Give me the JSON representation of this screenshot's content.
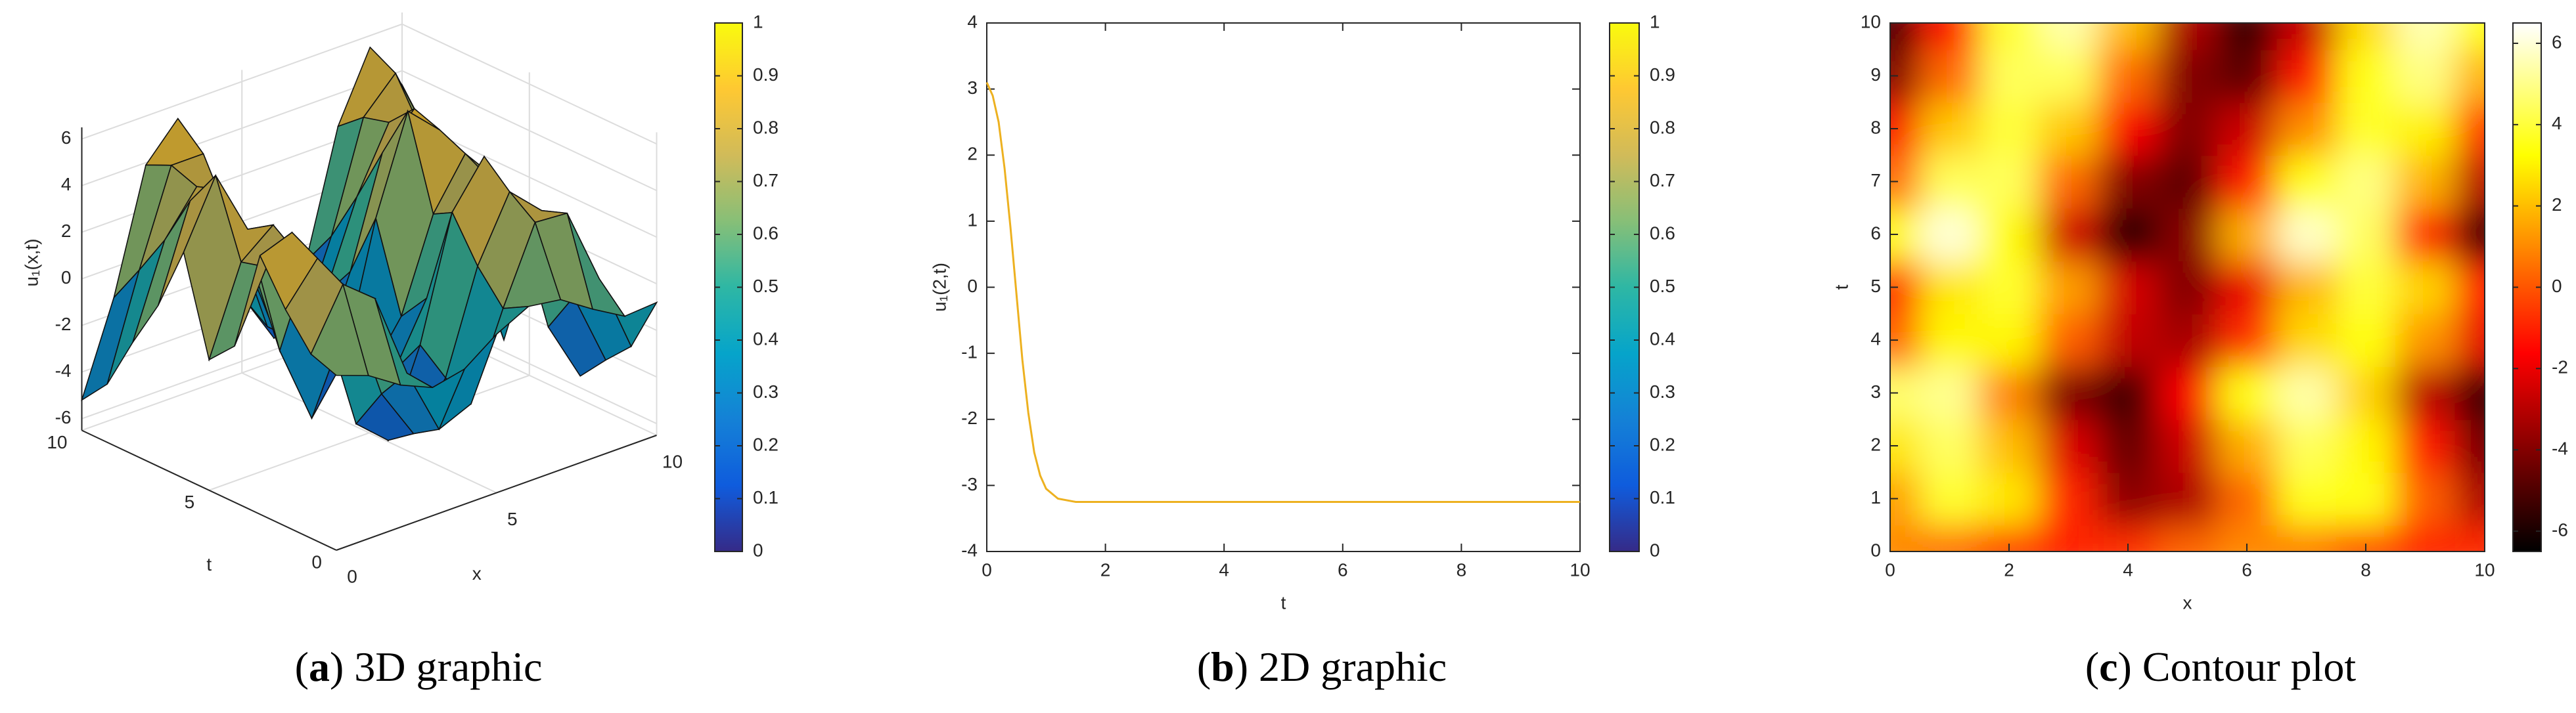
{
  "chart_data": [
    {
      "type": "surface",
      "xlabel": "x",
      "ylabel": "t",
      "zlabel": "u₁(x,t)",
      "x": [
        0,
        1,
        2,
        3,
        4,
        5,
        6,
        7,
        8,
        9,
        10
      ],
      "y": [
        0,
        1,
        2,
        3,
        4,
        5,
        6,
        7,
        8,
        9,
        10
      ],
      "z": [
        [
          1,
          0.5,
          -0.4,
          -1,
          -0.7,
          0.3,
          1,
          0.8,
          -0.1,
          -0.9,
          -0.8
        ],
        [
          1.4,
          3.9,
          2.8,
          -0.9,
          -3.8,
          -3.2,
          0.4,
          3.6,
          3.5,
          0.2,
          -3.2
        ],
        [
          2.8,
          4.5,
          2.0,
          -2.3,
          -4.5,
          -2.6,
          1.7,
          4.4,
          3.1,
          -1.1,
          -4.3
        ],
        [
          4.6,
          5.1,
          0.9,
          -4.1,
          -5.3,
          -1.7,
          3.5,
          5.4,
          2.4,
          -2.9,
          -5.5
        ],
        [
          0.2,
          3.1,
          3.1,
          0.2,
          -2.8,
          -3.3,
          -0.7,
          2.5,
          3.4,
          1.2,
          -2.1
        ],
        [
          -0.9,
          2.8,
          3.9,
          1.4,
          -2.4,
          -4.0,
          -2.0,
          1.9,
          4.0,
          2.4,
          -1.4
        ],
        [
          3.2,
          6.0,
          3.2,
          -2.5,
          -5.9,
          -3.9,
          1.7,
          5.8,
          4.5,
          -0.9,
          -5.5
        ],
        [
          0.4,
          4.4,
          4.4,
          0.4,
          -4.0,
          -4.7,
          -1.1,
          3.5,
          4.9,
          1.8,
          -3.0
        ],
        [
          -1.7,
          2.2,
          4.0,
          2.2,
          -1.7,
          -4.0,
          -2.6,
          1.1,
          3.8,
          3.0,
          -0.6
        ],
        [
          -4.0,
          0.4,
          4.4,
          4.4,
          0.4,
          -4.0,
          -4.7,
          -1.1,
          3.5,
          4.9,
          1.8
        ],
        [
          -5.2,
          -1.3,
          3.9,
          5.4,
          2.0,
          -3.2,
          -5.5,
          -2.7,
          2.6,
          5.5,
          3.4
        ]
      ],
      "xlim": [
        0,
        10
      ],
      "ylim": [
        0,
        10
      ],
      "zlim": [
        -6.5,
        6.5
      ],
      "xticks": [
        0,
        5,
        10
      ],
      "yticks": [
        0,
        5,
        10
      ],
      "zticks": [
        -6,
        -4,
        -2,
        0,
        2,
        4,
        6
      ],
      "colorbar": {
        "colormap": "parula",
        "lim": [
          0,
          1
        ],
        "ticks": [
          0,
          0.1,
          0.2,
          0.3,
          0.4,
          0.5,
          0.6,
          0.7,
          0.8,
          0.9,
          1
        ]
      },
      "caption": [
        "(",
        "a",
        ") 3D graphic"
      ]
    },
    {
      "type": "line",
      "xlabel": "t",
      "ylabel": "u₁(2,t)",
      "x": [
        0,
        0.1,
        0.2,
        0.3,
        0.4,
        0.5,
        0.6,
        0.7,
        0.8,
        0.9,
        1.0,
        1.2,
        1.5,
        2,
        4,
        6,
        8,
        10
      ],
      "series": [
        {
          "color": "#edb120",
          "values": [
            3.1,
            2.9,
            2.5,
            1.8,
            0.9,
            -0.1,
            -1.1,
            -1.9,
            -2.5,
            -2.85,
            -3.05,
            -3.2,
            -3.25,
            -3.25,
            -3.25,
            -3.25,
            -3.25,
            -3.25
          ]
        }
      ],
      "xlim": [
        0,
        10
      ],
      "ylim": [
        -4,
        4
      ],
      "xticks": [
        0,
        2,
        4,
        6,
        8,
        10
      ],
      "yticks": [
        -4,
        -3,
        -2,
        -1,
        0,
        1,
        2,
        3,
        4
      ],
      "colorbar": {
        "colormap": "parula",
        "lim": [
          0,
          1
        ],
        "ticks": [
          0,
          0.1,
          0.2,
          0.3,
          0.4,
          0.5,
          0.6,
          0.7,
          0.8,
          0.9,
          1
        ]
      },
      "caption": [
        "(",
        "b",
        ") 2D graphic"
      ]
    },
    {
      "type": "contour",
      "xlabel": "x",
      "ylabel": "t",
      "x": [
        0,
        1,
        2,
        3,
        4,
        5,
        6,
        7,
        8,
        9,
        10
      ],
      "y": [
        0,
        1,
        2,
        3,
        4,
        5,
        6,
        7,
        8,
        9,
        10
      ],
      "z": [
        [
          1,
          0.5,
          -0.4,
          -1,
          -0.7,
          0.3,
          1,
          0.8,
          -0.1,
          -0.9,
          -0.8
        ],
        [
          1.4,
          3.9,
          2.8,
          -0.9,
          -3.8,
          -3.2,
          0.4,
          3.6,
          3.5,
          0.2,
          -3.2
        ],
        [
          2.8,
          4.5,
          2.0,
          -2.3,
          -4.5,
          -2.6,
          1.7,
          4.4,
          3.1,
          -1.1,
          -4.3
        ],
        [
          4.6,
          5.1,
          0.9,
          -4.1,
          -5.3,
          -1.7,
          3.5,
          5.4,
          2.4,
          -2.9,
          -5.5
        ],
        [
          0.2,
          3.1,
          3.1,
          0.2,
          -2.8,
          -3.3,
          -0.7,
          2.5,
          3.4,
          1.2,
          -2.1
        ],
        [
          -0.9,
          2.8,
          3.9,
          1.4,
          -2.4,
          -4.0,
          -2.0,
          1.9,
          4.0,
          2.4,
          -1.4
        ],
        [
          3.2,
          6.0,
          3.2,
          -2.5,
          -5.9,
          -3.9,
          1.7,
          5.8,
          4.5,
          -0.9,
          -5.5
        ],
        [
          0.4,
          4.4,
          4.4,
          0.4,
          -4.0,
          -4.7,
          -1.1,
          3.5,
          4.9,
          1.8,
          -3.0
        ],
        [
          -1.7,
          2.2,
          4.0,
          2.2,
          -1.7,
          -4.0,
          -2.6,
          1.1,
          3.8,
          3.0,
          -0.6
        ],
        [
          -4.0,
          0.4,
          4.4,
          4.4,
          0.4,
          -4.0,
          -4.7,
          -1.1,
          3.5,
          4.9,
          1.8
        ],
        [
          -5.2,
          -1.3,
          3.9,
          5.4,
          2.0,
          -3.2,
          -5.5,
          -2.7,
          2.6,
          5.5,
          3.4
        ]
      ],
      "xlim": [
        0,
        10
      ],
      "ylim": [
        0,
        10
      ],
      "xticks": [
        0,
        2,
        4,
        6,
        8,
        10
      ],
      "yticks": [
        0,
        1,
        2,
        3,
        4,
        5,
        6,
        7,
        8,
        9,
        10
      ],
      "colorbar": {
        "colormap": "hot",
        "lim": [
          -6.5,
          6.5
        ],
        "ticks": [
          -6,
          -4,
          -2,
          0,
          2,
          4,
          6
        ]
      },
      "caption": [
        "(",
        "c",
        ") Contour plot"
      ]
    }
  ]
}
